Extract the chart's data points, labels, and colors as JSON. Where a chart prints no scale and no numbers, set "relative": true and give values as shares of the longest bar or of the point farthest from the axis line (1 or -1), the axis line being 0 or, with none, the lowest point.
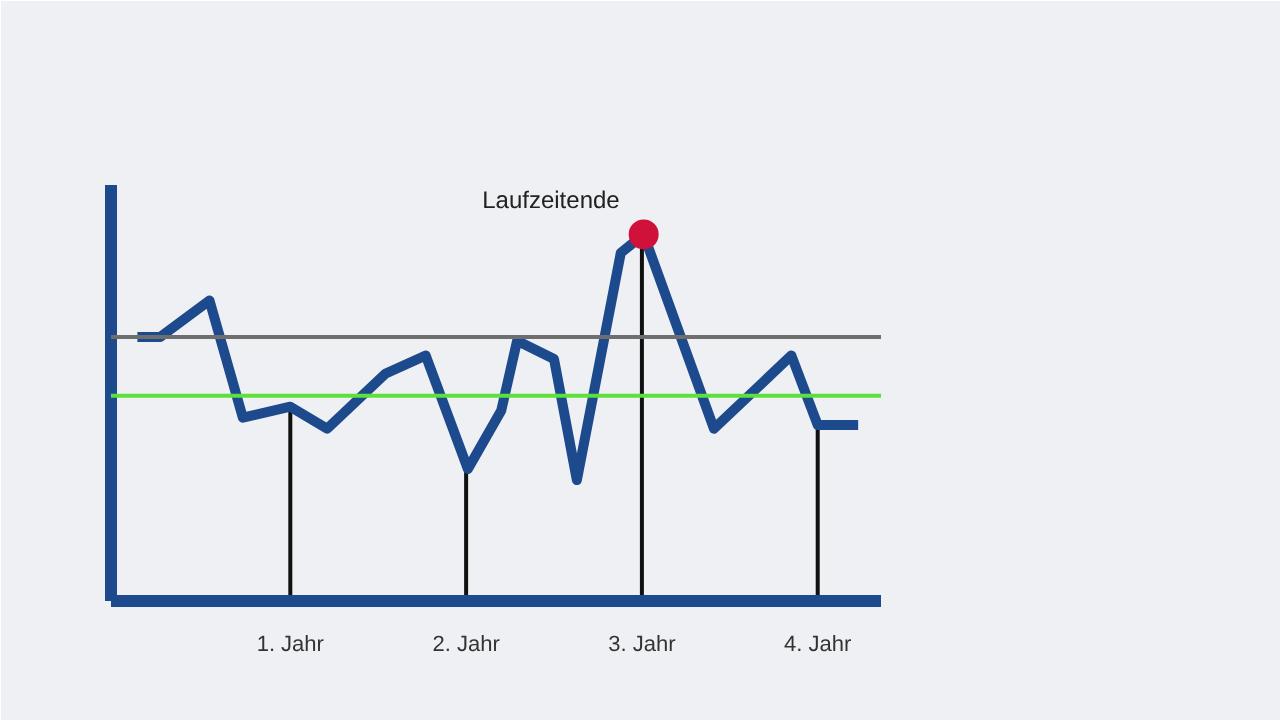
{
  "chart_data": {
    "type": "line",
    "relative": true,
    "x": [
      0.13,
      0.26,
      0.54,
      0.73,
      1.0,
      1.21,
      1.54,
      1.77,
      2.01,
      2.2,
      2.29,
      2.5,
      2.63,
      2.88,
      3.01,
      3.41,
      3.85,
      4.0,
      4.23
    ],
    "series": [
      {
        "color": "#1c4a8c",
        "values": [
          0.72,
          0.72,
          0.82,
          0.5,
          0.53,
          0.47,
          0.62,
          0.67,
          0.36,
          0.52,
          0.71,
          0.66,
          0.33,
          0.95,
          1.0,
          0.47,
          0.67,
          0.48,
          0.48
        ]
      }
    ],
    "xlim": [
      -0.02,
      4.36
    ],
    "xticks": [
      {
        "value": 1,
        "label": "1. Jahr"
      },
      {
        "value": 2,
        "label": "2. Jahr"
      },
      {
        "value": 3,
        "label": "3. Jahr"
      },
      {
        "value": 4,
        "label": "4. Jahr"
      }
    ],
    "ref_lines": [
      {
        "axis": "y",
        "value": 0.72,
        "color": "#6e6e6e"
      },
      {
        "axis": "y",
        "value": 0.56,
        "color": "#5ee03c"
      },
      {
        "axis": "x",
        "value": 1,
        "color": "#111111"
      },
      {
        "axis": "x",
        "value": 2,
        "color": "#111111"
      },
      {
        "axis": "x",
        "value": 3,
        "color": "#111111"
      },
      {
        "axis": "x",
        "value": 4,
        "color": "#111111"
      }
    ],
    "annotations": [
      {
        "text": "Laufzeitende",
        "x": 3.01,
        "y": 1.0
      }
    ],
    "marker": "none",
    "line_style": "solid"
  }
}
